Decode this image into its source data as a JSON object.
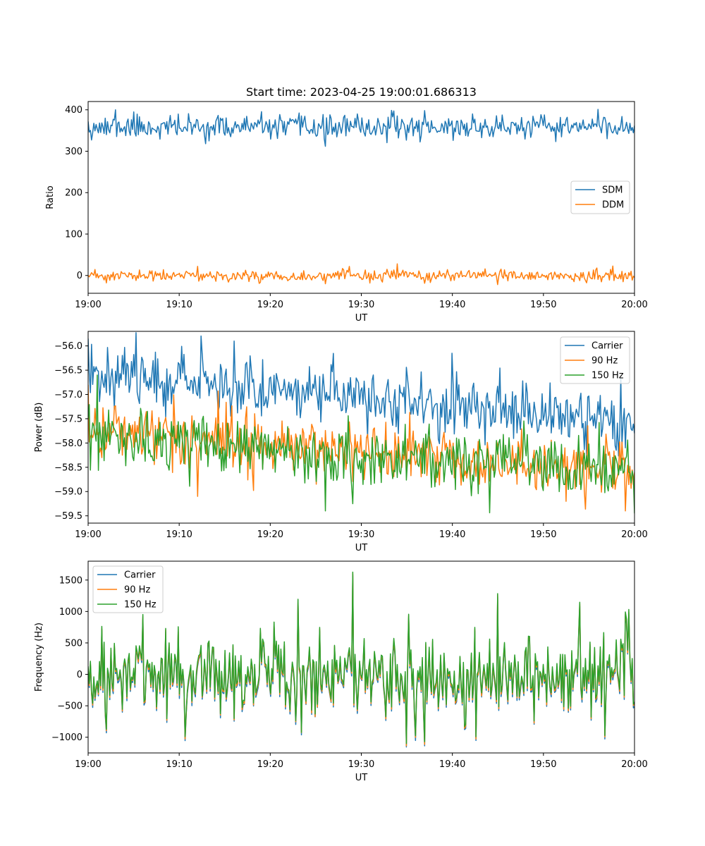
{
  "figure_title": "Start time: 2023-04-25 19:00:01.686313",
  "chart_data": [
    {
      "type": "line",
      "title": "Start time: 2023-04-25 19:00:01.686313",
      "xlabel": "UT",
      "ylabel": "Ratio",
      "x_range": [
        "19:00",
        "20:00"
      ],
      "x_ticks": [
        "19:00",
        "19:10",
        "19:20",
        "19:30",
        "19:40",
        "19:50",
        "20:00"
      ],
      "ylim": [
        -43,
        420
      ],
      "y_ticks": [
        0,
        100,
        200,
        300,
        400
      ],
      "legend_position": "center-right",
      "grid": false,
      "series": [
        {
          "name": "SDM",
          "color": "#1f77b4",
          "mean": 358,
          "std": 14,
          "points": 480,
          "seed": 11,
          "x": [
            "19:00",
            "19:02",
            "19:03",
            "19:05",
            "19:26",
            "19:34",
            "19:37",
            "19:56",
            "19:57",
            "20:00"
          ],
          "values": [
            372,
            340,
            400,
            395,
            312,
            385,
            398,
            401,
            330,
            362
          ]
        },
        {
          "name": "DDM",
          "color": "#ff7f0e",
          "mean": -1,
          "std": 7,
          "points": 480,
          "seed": 23,
          "x": [
            "19:00",
            "19:02",
            "19:12",
            "19:26",
            "19:34",
            "19:45",
            "20:00"
          ],
          "values": [
            0,
            -18,
            22,
            -20,
            28,
            -22,
            -5
          ]
        }
      ]
    },
    {
      "type": "line",
      "title": "",
      "xlabel": "UT",
      "ylabel": "Power (dB)",
      "x_range": [
        "19:00",
        "20:00"
      ],
      "x_ticks": [
        "19:00",
        "19:10",
        "19:20",
        "19:30",
        "19:40",
        "19:50",
        "20:00"
      ],
      "ylim": [
        -59.65,
        -55.7
      ],
      "y_ticks": [
        -56.0,
        -56.5,
        -57.0,
        -57.5,
        -58.0,
        -58.5,
        -59.0,
        -59.5
      ],
      "y_tick_labels": [
        "−56.0",
        "−56.5",
        "−57.0",
        "−57.5",
        "−58.0",
        "−58.5",
        "−59.0",
        "−59.5"
      ],
      "legend_position": "top-right",
      "grid": false,
      "series": [
        {
          "name": "Carrier",
          "color": "#1f77b4",
          "trend_start": -56.5,
          "trend_end": -57.6,
          "std": 0.3,
          "points": 480,
          "seed": 37,
          "x": [
            "19:00",
            "19:16",
            "19:40",
            "19:59",
            "20:00"
          ],
          "values": [
            -55.85,
            -55.9,
            -56.15,
            -58.1,
            -57.8
          ]
        },
        {
          "name": "90 Hz",
          "color": "#ff7f0e",
          "trend_start": -57.7,
          "trend_end": -58.6,
          "std": 0.3,
          "points": 480,
          "seed": 41,
          "x": [
            "19:00",
            "19:12",
            "19:25",
            "19:59",
            "20:00"
          ],
          "values": [
            -56.8,
            -59.1,
            -58.85,
            -59.4,
            -58.6
          ]
        },
        {
          "name": "150 Hz",
          "color": "#2ca02c",
          "trend_start": -57.9,
          "trend_end": -58.6,
          "std": 0.3,
          "points": 480,
          "seed": 53,
          "x": [
            "19:00",
            "19:01",
            "19:26",
            "19:29",
            "20:00"
          ],
          "values": [
            -57.5,
            -56.6,
            -59.4,
            -59.25,
            -59.45
          ]
        }
      ]
    },
    {
      "type": "line",
      "title": "",
      "xlabel": "UT",
      "ylabel": "Frequency (Hz)",
      "x_range": [
        "19:00",
        "20:00"
      ],
      "x_ticks": [
        "19:00",
        "19:10",
        "19:20",
        "19:30",
        "19:40",
        "19:50",
        "20:00"
      ],
      "ylim": [
        -1250,
        1800
      ],
      "y_ticks": [
        -1000,
        -500,
        0,
        500,
        1000,
        1500
      ],
      "y_tick_labels": [
        "−1000",
        "−500",
        "0",
        "500",
        "1000",
        "1500"
      ],
      "legend_position": "top-left",
      "grid": false,
      "base": {
        "mean": 0,
        "std": 330,
        "points": 480,
        "seed": 71,
        "x": [
          "19:02",
          "19:06",
          "19:23",
          "19:29",
          "19:35",
          "19:37",
          "19:45",
          "19:54",
          "19:59"
        ],
        "values": [
          -870,
          950,
          1200,
          1640,
          -1100,
          -1080,
          1290,
          1150,
          990
        ]
      },
      "series": [
        {
          "name": "Carrier",
          "color": "#1f77b4",
          "offset": -60
        },
        {
          "name": "90 Hz",
          "color": "#ff7f0e",
          "offset": -30
        },
        {
          "name": "150 Hz",
          "color": "#2ca02c",
          "offset": 0
        }
      ]
    }
  ]
}
